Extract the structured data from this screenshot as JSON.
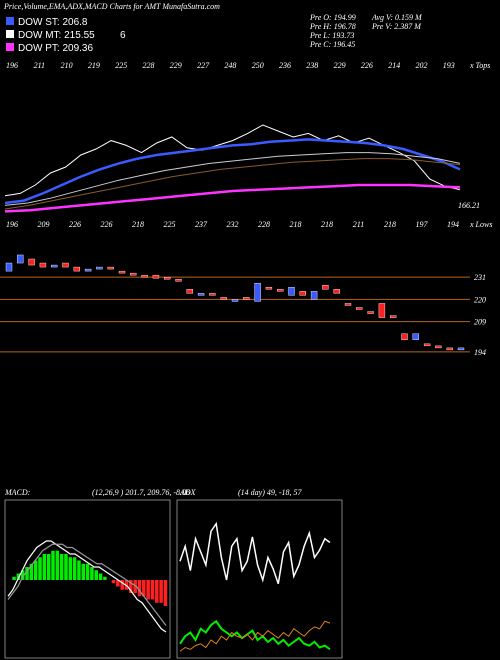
{
  "header": {
    "title": "Price,Volume,EMA,ADX,MACD Charts for AMT MunafaSutra.com",
    "count": "6"
  },
  "legend": [
    {
      "label": "DOW ST: 206.8",
      "color": "#3a5bff"
    },
    {
      "label": "DOW MT: 215.55",
      "color": "#ffffff"
    },
    {
      "label": "DOW PT: 209.36",
      "color": "#ff33ff"
    }
  ],
  "info": [
    "Pre  O: 194.99",
    "Pre  H: 196.78",
    "Pre  L: 193.73",
    "Pre  C: 196.45",
    "Avg V: 0.159 M",
    "Pre  V: 2.387 M"
  ],
  "top_axis": {
    "labels": [
      "196",
      "211",
      "210",
      "219",
      "225",
      "228",
      "229",
      "227",
      "248",
      "250",
      "236",
      "238",
      "229",
      "226",
      "214",
      "202",
      "193"
    ],
    "corner": "x Tops"
  },
  "bottom_axis": {
    "labels": [
      "196",
      "209",
      "226",
      "226",
      "218",
      "225",
      "237",
      "232",
      "228",
      "218",
      "218",
      "211",
      "218",
      "197",
      "194"
    ],
    "corner": "x Lows"
  },
  "price_panel": {
    "ylim": [
      160,
      260
    ],
    "last": "166.21",
    "series": [
      {
        "color": "#ffffff",
        "values": [
          176,
          178,
          185,
          195,
          200,
          210,
          215,
          222,
          218,
          212,
          220,
          225,
          216,
          214,
          218,
          222,
          228,
          235,
          230,
          225,
          228,
          222,
          226,
          220,
          224,
          218,
          212,
          205,
          190,
          184,
          181
        ]
      },
      {
        "color": "#3a5bff",
        "values": [
          170,
          172,
          178,
          185,
          192,
          198,
          203,
          207,
          210,
          212,
          214,
          216,
          218,
          219,
          221,
          222,
          223,
          222,
          221,
          220,
          218,
          215,
          210,
          205,
          198
        ]
      },
      {
        "color": "#cccccc",
        "values": [
          168,
          170,
          174,
          179,
          184,
          189,
          193,
          197,
          200,
          203,
          205,
          207,
          209,
          210,
          211,
          212,
          212,
          211,
          209,
          207,
          203
        ]
      },
      {
        "color": "#8b5a2b",
        "values": [
          165,
          168,
          172,
          176,
          180,
          184,
          188,
          192,
          195,
          198,
          200,
          202,
          204,
          205,
          206,
          207,
          207,
          206,
          204,
          202
        ]
      },
      {
        "color": "#ff33ff",
        "values": [
          163,
          164,
          166,
          168,
          170,
          172,
          174,
          176,
          178,
          180,
          181,
          182,
          183,
          184,
          185,
          185,
          185,
          184,
          183
        ]
      }
    ]
  },
  "candle_panel": {
    "ylim": [
      190,
      250
    ],
    "levels": [
      231,
      220,
      209,
      194
    ],
    "candles": [
      [
        234,
        238
      ],
      [
        238,
        242
      ],
      [
        240,
        237
      ],
      [
        238,
        236
      ],
      [
        236,
        237
      ],
      [
        238,
        236
      ],
      [
        236,
        234
      ],
      [
        234,
        235
      ],
      [
        235,
        236
      ],
      [
        236,
        235
      ],
      [
        234,
        233
      ],
      [
        233,
        232
      ],
      [
        232,
        231.5
      ],
      [
        232,
        230.5
      ],
      [
        231,
        230
      ],
      [
        230,
        229
      ],
      [
        225,
        223
      ],
      [
        222,
        223
      ],
      [
        223,
        222
      ],
      [
        221,
        220
      ],
      [
        219,
        220
      ],
      [
        221,
        220
      ],
      [
        219,
        228
      ],
      [
        226,
        225
      ],
      [
        225,
        224
      ],
      [
        222,
        226
      ],
      [
        224,
        222
      ],
      [
        220,
        224
      ],
      [
        227,
        225
      ],
      [
        225,
        223
      ],
      [
        218,
        217
      ],
      [
        216,
        215
      ],
      [
        214,
        213
      ],
      [
        218,
        211
      ],
      [
        212,
        211
      ],
      [
        203,
        200
      ],
      [
        200,
        203
      ],
      [
        198,
        197
      ],
      [
        197,
        196
      ],
      [
        196,
        195
      ],
      [
        195,
        196
      ]
    ]
  },
  "macd": {
    "label": "MACD:",
    "params": "(12,26,9 ) 201.7, 209.76, -8.06",
    "ylim": [
      -20,
      20
    ],
    "hist": [
      0,
      1,
      2,
      3,
      4,
      5,
      6,
      7,
      8,
      8,
      9,
      9,
      8,
      8,
      7,
      7,
      6,
      5,
      5,
      4,
      3,
      2,
      1,
      0,
      -1,
      -2,
      -3,
      -3,
      -4,
      -4,
      -5,
      -5,
      -6,
      -6,
      -7,
      -7,
      -8
    ],
    "line": [
      -5,
      -3,
      0,
      3,
      6,
      8,
      10,
      11,
      12,
      12,
      11,
      10,
      9,
      8,
      8,
      7,
      6,
      5,
      4,
      4,
      3,
      2,
      1,
      0,
      -1,
      -2,
      -4,
      -6,
      -7,
      -9,
      -11,
      -13,
      -15,
      -16
    ],
    "signal": [
      -6,
      -4,
      -2,
      1,
      3,
      5,
      7,
      9,
      10,
      11,
      11,
      11,
      10,
      10,
      9,
      8,
      7,
      6,
      5,
      5,
      4,
      3,
      2,
      1,
      0,
      -1,
      -2,
      -4,
      -6,
      -8,
      -10,
      -12,
      -14
    ]
  },
  "adx": {
    "label": "ADX",
    "params": "(14 day) 49, -18, 57",
    "ylim": [
      0,
      80
    ],
    "white": [
      50,
      58,
      45,
      62,
      55,
      48,
      66,
      70,
      52,
      40,
      58,
      62,
      45,
      50,
      63,
      48,
      40,
      52,
      46,
      38,
      55,
      60,
      42,
      48,
      58,
      65,
      52,
      56,
      62,
      60
    ],
    "green": [
      6,
      10,
      12,
      8,
      14,
      12,
      16,
      18,
      14,
      12,
      10,
      12,
      9,
      11,
      13,
      8,
      10,
      7,
      9,
      6,
      8,
      5,
      7,
      9,
      6,
      5,
      7,
      4,
      5,
      3
    ],
    "orange": [
      2,
      4,
      3,
      5,
      6,
      4,
      8,
      6,
      10,
      8,
      12,
      10,
      9,
      11,
      8,
      12,
      10,
      13,
      11,
      9,
      12,
      10,
      14,
      12,
      10,
      13,
      15,
      14,
      18,
      17
    ]
  }
}
